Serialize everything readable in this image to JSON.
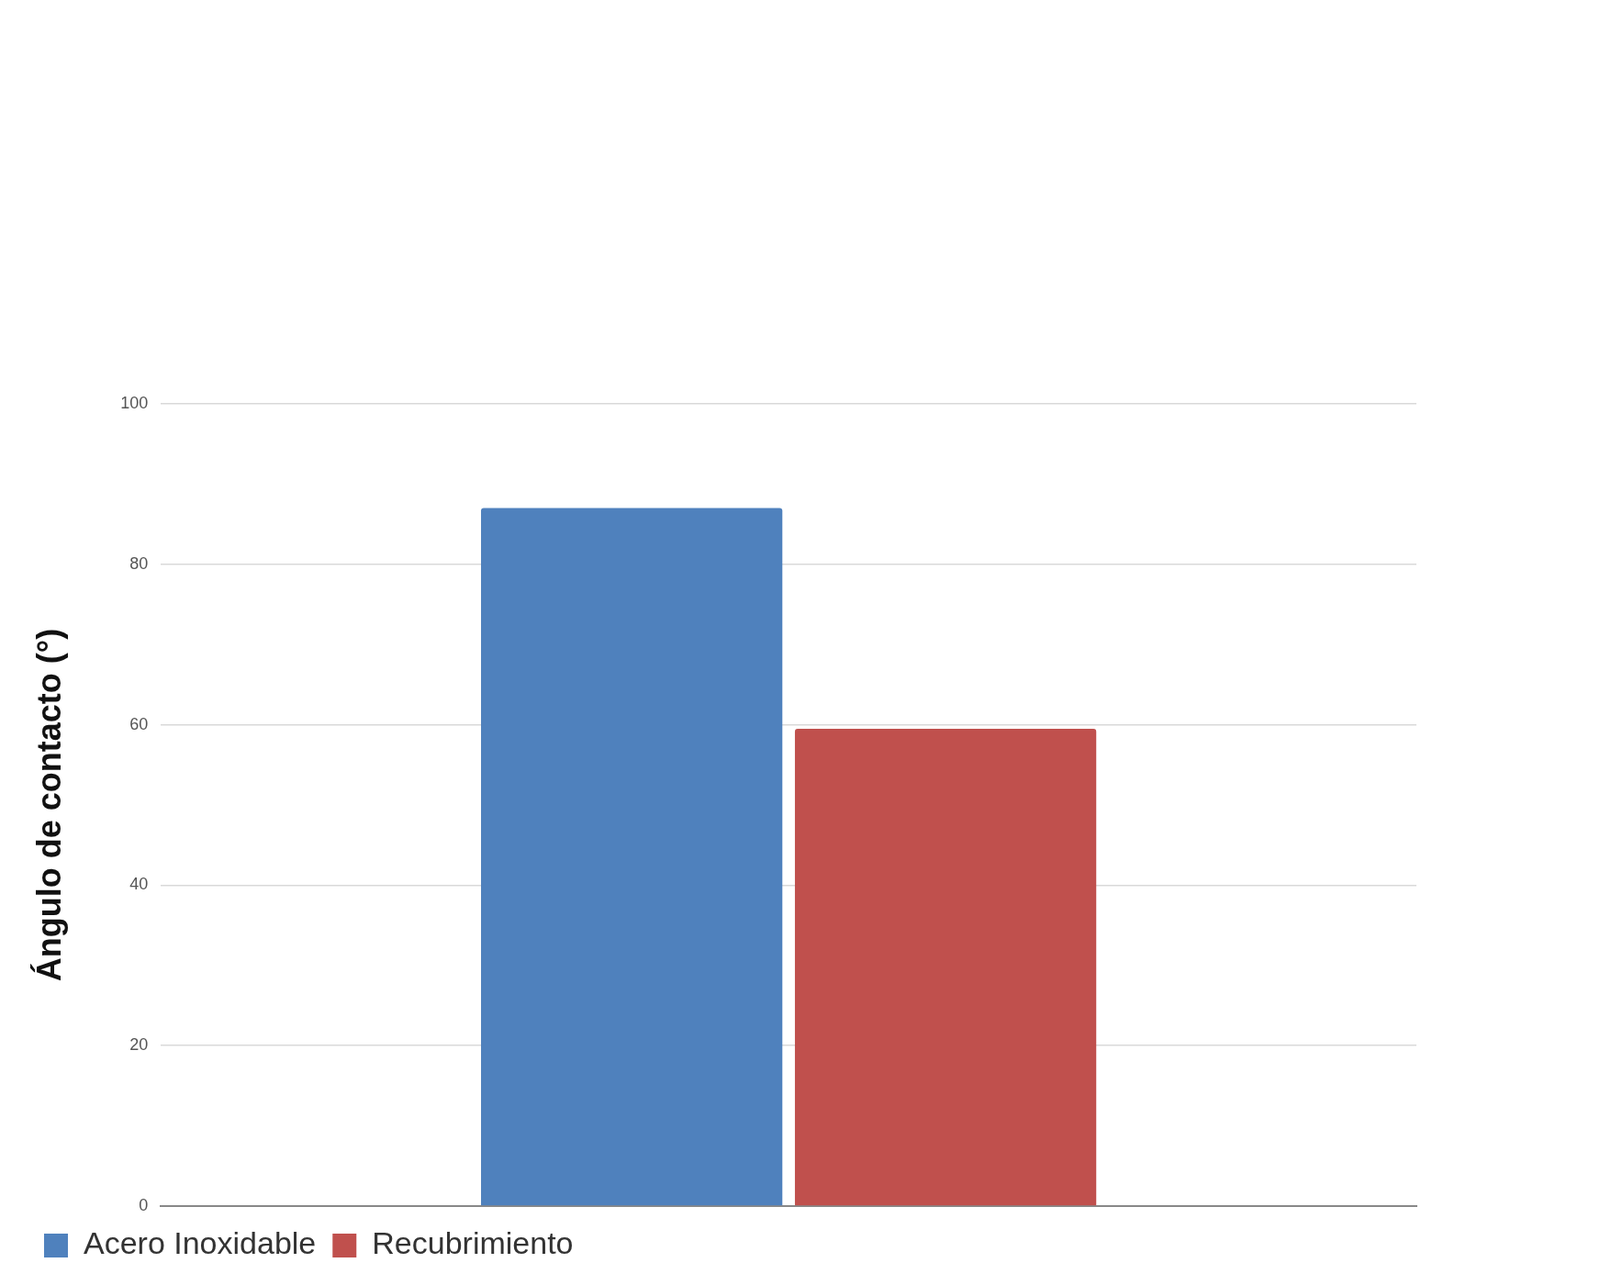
{
  "chart_data": {
    "type": "bar",
    "y_label": "Ángulo de contacto (°)",
    "categories": [
      null
    ],
    "series": [
      {
        "name": "Acero Inoxidable",
        "color": "#4f81bd",
        "values": [
          87
        ]
      },
      {
        "name": "Recubrimiento",
        "color": "#c0504d",
        "values": [
          59.5
        ]
      }
    ],
    "ylim": [
      0,
      100
    ],
    "yticks": [
      0,
      20,
      40,
      60,
      80,
      100
    ],
    "grid": true,
    "legend": "bottom-left",
    "tick_labels": "y"
  }
}
